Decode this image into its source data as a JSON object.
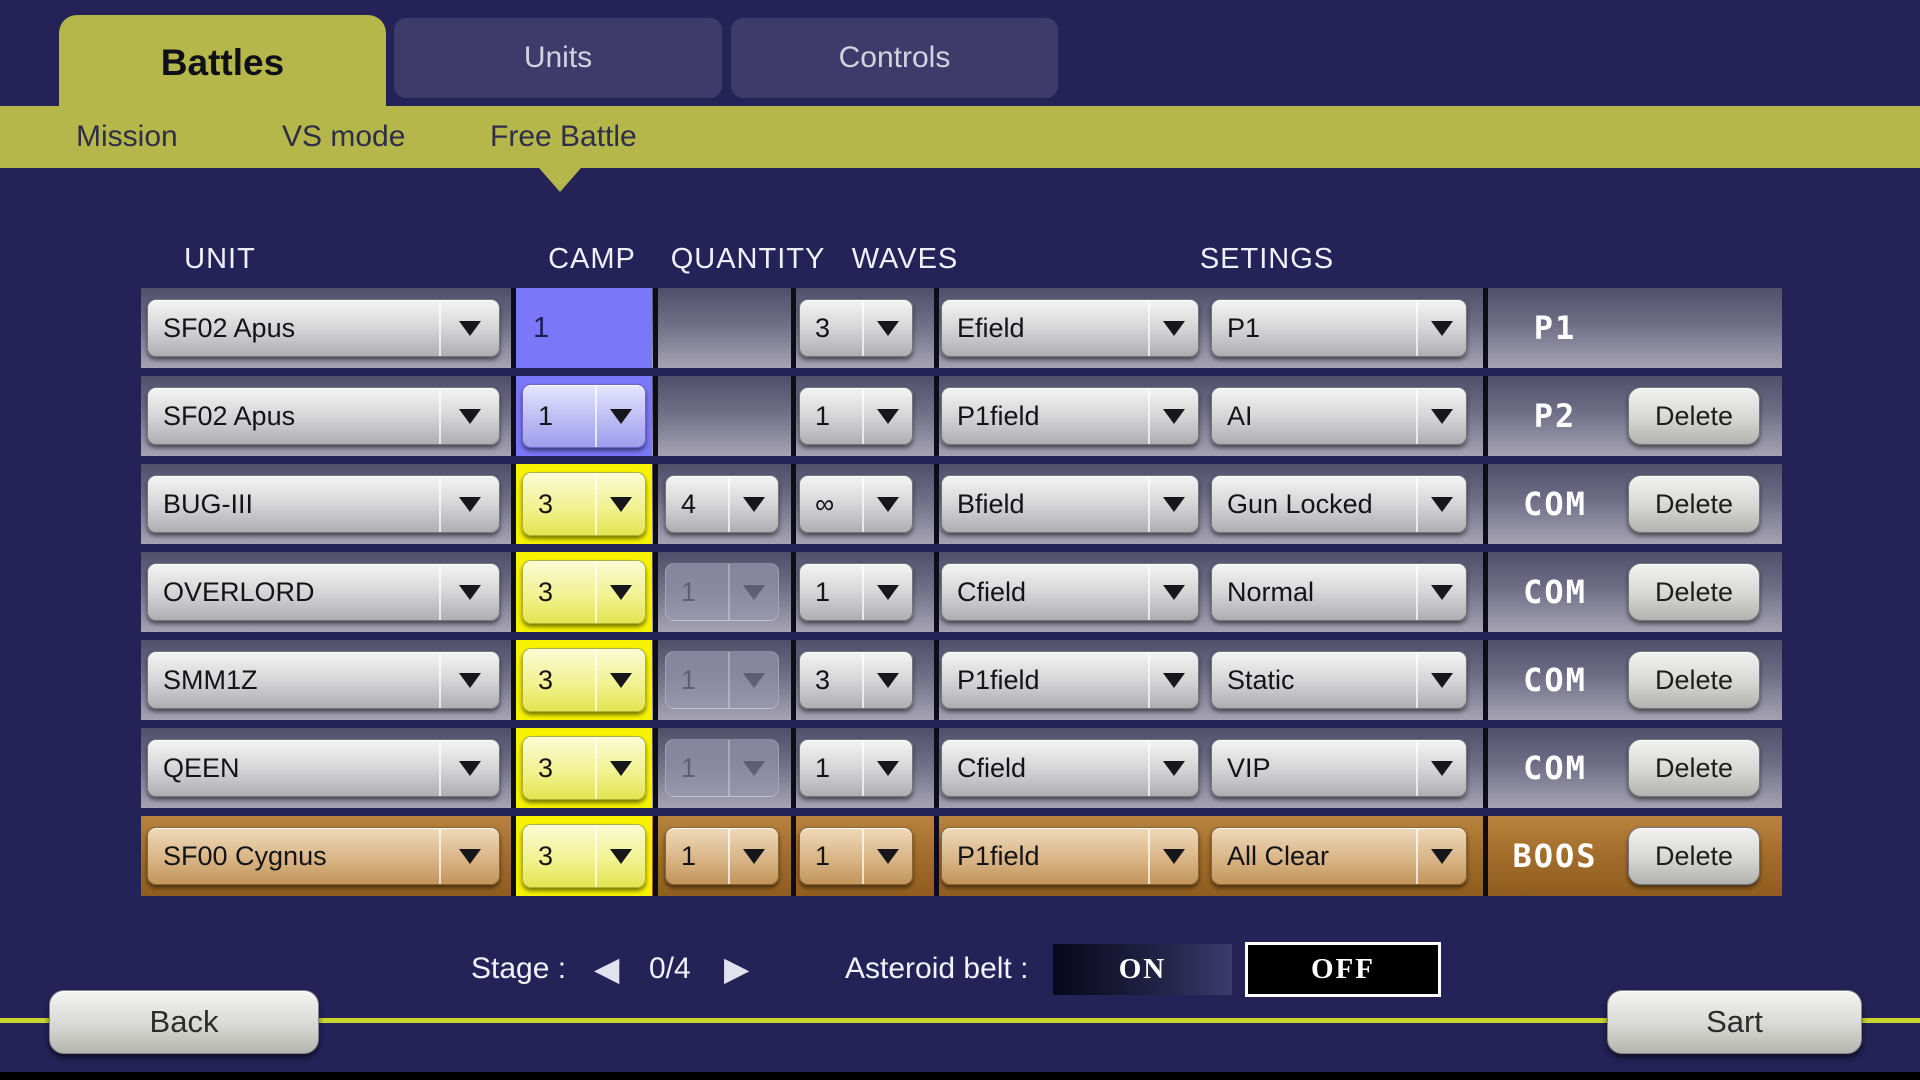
{
  "tabs": [
    {
      "id": "battles",
      "label": "Battles",
      "active": true
    },
    {
      "id": "units",
      "label": "Units",
      "active": false
    },
    {
      "id": "controls",
      "label": "Controls",
      "active": false
    }
  ],
  "subtabs": [
    {
      "id": "mission",
      "label": "Mission",
      "selected": false
    },
    {
      "id": "vs-mode",
      "label": "VS mode",
      "selected": false
    },
    {
      "id": "free-battle",
      "label": "Free Battle",
      "selected": true
    }
  ],
  "table": {
    "headers": {
      "unit": "UNIT",
      "camp": "CAMP",
      "quantity": "QUANTITY",
      "waves": "WAVES",
      "settings": "SETINGS"
    },
    "delete_label": "Delete",
    "rows": [
      {
        "unit": "SF02 Apus",
        "camp": "1",
        "camp_cell": "blue",
        "camp_dropdown": false,
        "quantity": null,
        "quantity_disabled": false,
        "waves": "3",
        "field": "Efield",
        "mode": "P1",
        "slot": "P1",
        "can_delete": false,
        "theme": "normal"
      },
      {
        "unit": "SF02 Apus",
        "camp": "1",
        "camp_cell": "blue",
        "camp_dropdown": true,
        "quantity": null,
        "quantity_disabled": false,
        "waves": "1",
        "field": "P1field",
        "mode": "AI",
        "slot": "P2",
        "can_delete": true,
        "theme": "normal"
      },
      {
        "unit": "BUG-III",
        "camp": "3",
        "camp_cell": "yellow",
        "camp_dropdown": true,
        "quantity": "4",
        "quantity_disabled": false,
        "waves": "∞",
        "field": "Bfield",
        "mode": "Gun Locked",
        "slot": "COM",
        "can_delete": true,
        "theme": "normal"
      },
      {
        "unit": "OVERLORD",
        "camp": "3",
        "camp_cell": "yellow",
        "camp_dropdown": true,
        "quantity": "1",
        "quantity_disabled": true,
        "waves": "1",
        "field": "Cfield",
        "mode": "Normal",
        "slot": "COM",
        "can_delete": true,
        "theme": "normal"
      },
      {
        "unit": "SMM1Z",
        "camp": "3",
        "camp_cell": "yellow",
        "camp_dropdown": true,
        "quantity": "1",
        "quantity_disabled": true,
        "waves": "3",
        "field": "P1field",
        "mode": "Static",
        "slot": "COM",
        "can_delete": true,
        "theme": "normal"
      },
      {
        "unit": "QEEN",
        "camp": "3",
        "camp_cell": "yellow",
        "camp_dropdown": true,
        "quantity": "1",
        "quantity_disabled": true,
        "waves": "1",
        "field": "Cfield",
        "mode": "VIP",
        "slot": "COM",
        "can_delete": true,
        "theme": "normal"
      },
      {
        "unit": "SF00 Cygnus",
        "camp": "3",
        "camp_cell": "yellow",
        "camp_dropdown": true,
        "quantity": "1",
        "quantity_disabled": false,
        "waves": "1",
        "field": "P1field",
        "mode": "All Clear",
        "slot": "BOOS",
        "can_delete": true,
        "theme": "boss"
      }
    ]
  },
  "footer": {
    "stage_label": "Stage :",
    "stage_value": "0/4",
    "asteroid_label": "Asteroid belt :",
    "asteroid_on": "ON",
    "asteroid_off": "OFF",
    "asteroid_state": "OFF",
    "back_label": "Back",
    "start_label": "Sart"
  },
  "colors": {
    "background": "#242257",
    "accent_olive": "#b6b74a",
    "camp_selected_blue": "#7b77f9",
    "camp_enemy_yellow": "#f7f300",
    "boss_row_brown": "#a26d2b",
    "footer_line": "#c9d52f"
  }
}
